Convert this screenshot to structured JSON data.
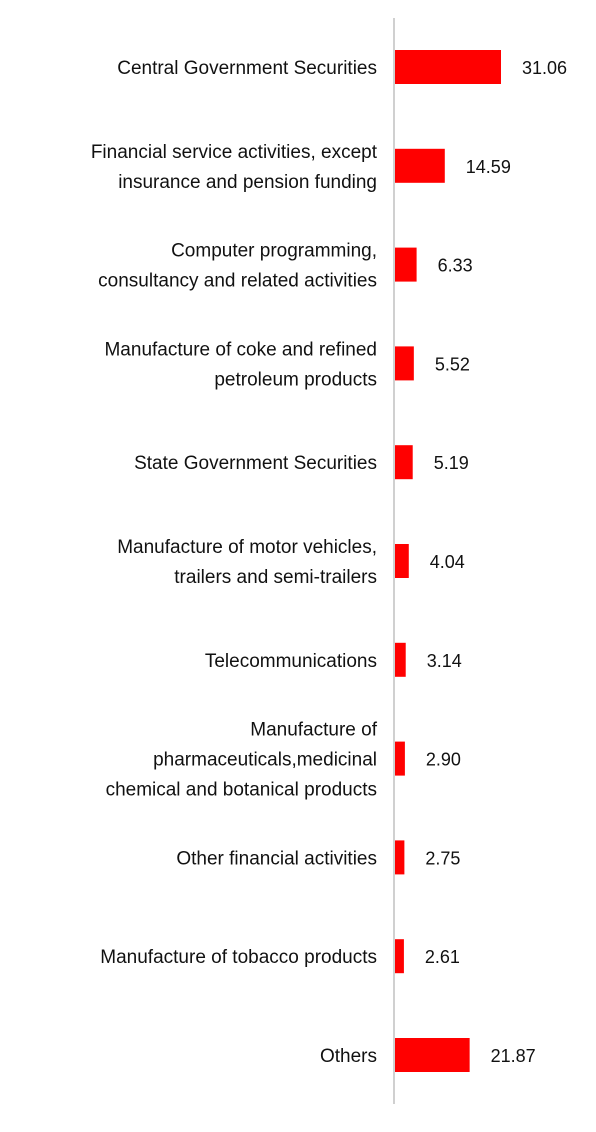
{
  "chart_data": {
    "type": "bar",
    "orientation": "horizontal",
    "title": "",
    "xlabel": "",
    "ylabel": "",
    "categories": [
      "Central Government Securities",
      "Financial service activities, except insurance and pension funding",
      "Computer programming, consultancy and related activities",
      "Manufacture of coke and refined petroleum products",
      "State Government Securities",
      "Manufacture of motor vehicles, trailers and semi-trailers",
      "Telecommunications",
      "Manufacture of pharmaceuticals,medicinal chemical and botanical products",
      "Other financial activities",
      "Manufacture of tobacco products",
      "Others"
    ],
    "category_lines": [
      [
        "Central Government Securities"
      ],
      [
        "Financial service activities, except",
        "insurance and pension funding"
      ],
      [
        "Computer programming,",
        "consultancy and related activities"
      ],
      [
        "Manufacture of coke and refined",
        "petroleum products"
      ],
      [
        "State Government Securities"
      ],
      [
        "Manufacture of motor vehicles,",
        "trailers and semi-trailers"
      ],
      [
        "Telecommunications"
      ],
      [
        "Manufacture of",
        "pharmaceuticals,medicinal",
        "chemical and botanical products"
      ],
      [
        "Other financial activities"
      ],
      [
        "Manufacture of tobacco products"
      ],
      [
        "Others"
      ]
    ],
    "values": [
      31.06,
      14.59,
      6.33,
      5.52,
      5.19,
      4.04,
      3.14,
      2.9,
      2.75,
      2.61,
      21.87
    ],
    "value_labels": [
      "31.06",
      "14.59",
      "6.33",
      "5.52",
      "5.19",
      "4.04",
      "3.14",
      "2.90",
      "2.75",
      "2.61",
      "21.87"
    ],
    "xlim": [
      0,
      50
    ],
    "grid": false,
    "legend": "none",
    "bar_color": "#ff0000",
    "axis_color": "#d0d0d0"
  }
}
